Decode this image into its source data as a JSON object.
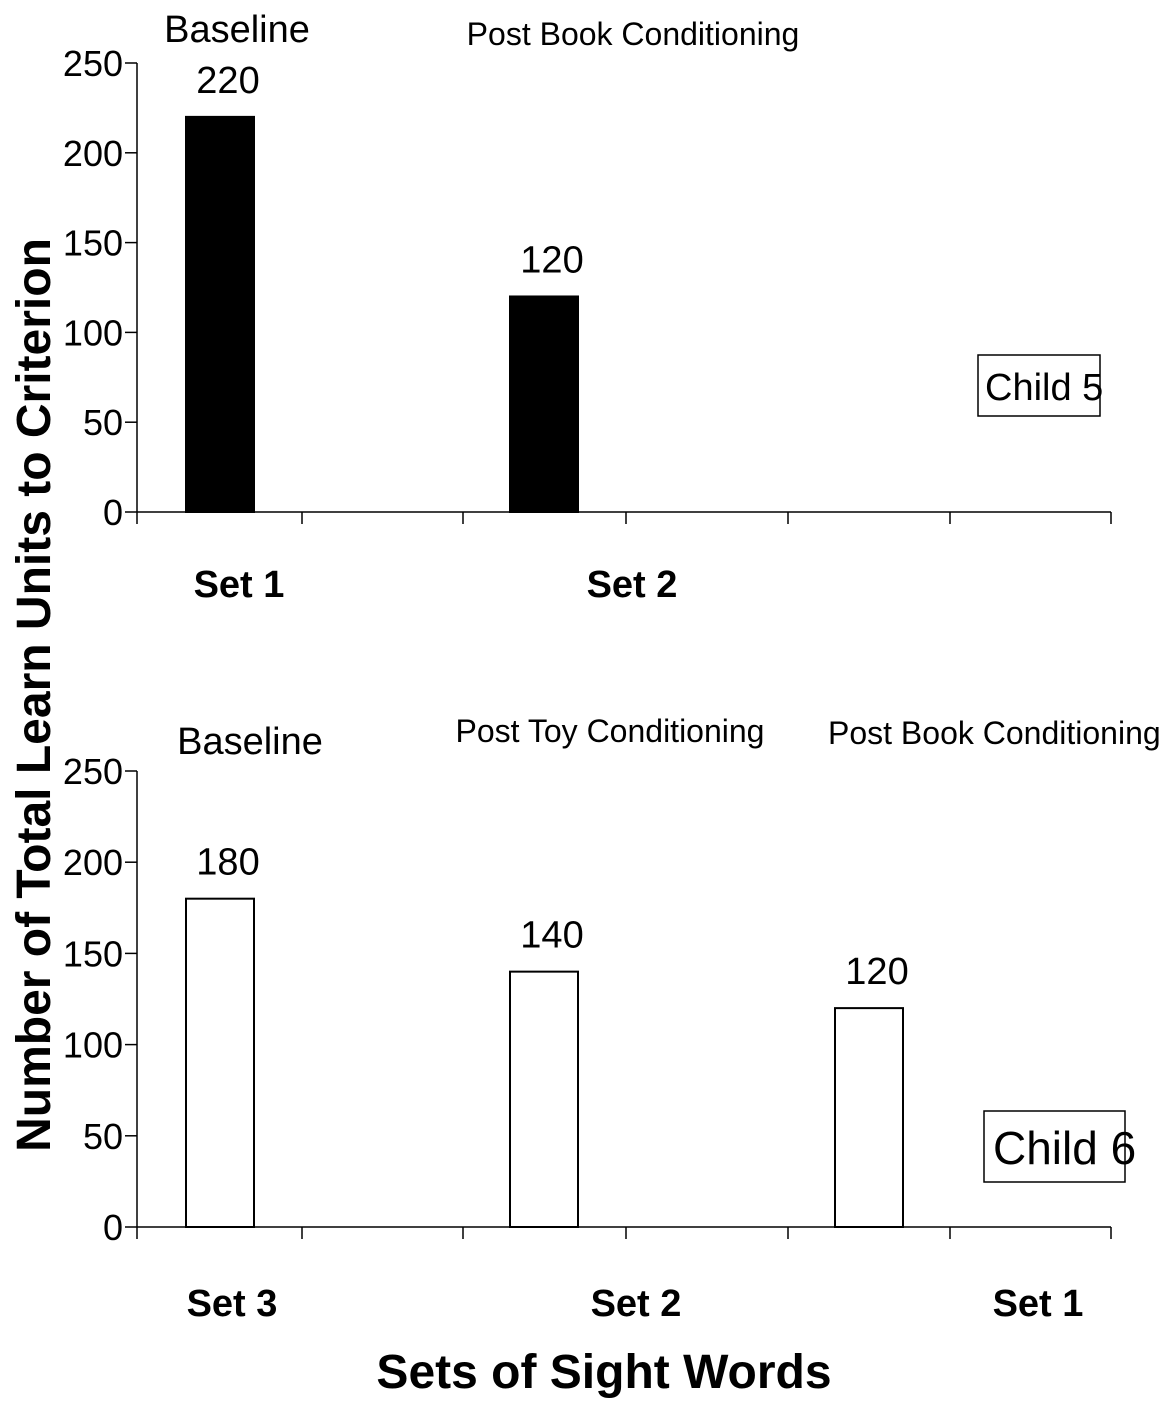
{
  "chart_data": {
    "type": "bar",
    "ylabel": "Number of Total Learn Units to Criterion",
    "xlabel": "Sets of Sight Words",
    "ylim": [
      0,
      250
    ],
    "yticks": [
      0,
      50,
      100,
      150,
      200,
      250
    ],
    "panels": [
      {
        "child_label": "Child 5",
        "phase_labels": [
          "Baseline",
          "Post Book Conditioning"
        ],
        "categories": [
          "Set 1",
          "Set 2"
        ],
        "values": [
          220,
          120
        ],
        "value_labels": [
          "220",
          "120"
        ],
        "bar_fill": "#000000"
      },
      {
        "child_label": "Child 6",
        "phase_labels": [
          "Baseline",
          "Post Toy Conditioning",
          "Post Book Conditioning"
        ],
        "categories": [
          "Set 3",
          "Set 2",
          "Set 1"
        ],
        "values": [
          180,
          140,
          120
        ],
        "value_labels": [
          "180",
          "140",
          "120"
        ],
        "bar_fill": "#ffffff"
      }
    ]
  }
}
